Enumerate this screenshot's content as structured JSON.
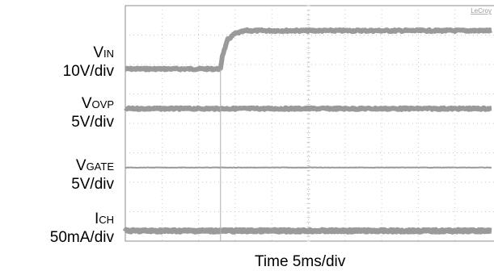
{
  "chart_data": {
    "type": "line",
    "brand": "LeCroy",
    "xlabel": "Time 5ms/div",
    "x_divisions": 10,
    "y_divisions": 8,
    "grid": true,
    "trace_color": "#9a9a9a",
    "grid_color": "#c8c8c8",
    "series": [
      {
        "name": "VIN",
        "name_main": "V",
        "name_sub": "IN",
        "scale": "10V/div",
        "x": [
          0,
          2.6,
          2.65,
          2.8,
          3.0,
          3.3,
          10
        ],
        "y": [
          5.85,
          5.85,
          6.3,
          6.85,
          7.05,
          7.15,
          7.15
        ]
      },
      {
        "name": "VOVP",
        "name_main": "V",
        "name_sub": "OVP",
        "scale": "5V/div",
        "x": [
          0,
          10
        ],
        "y": [
          4.5,
          4.5
        ]
      },
      {
        "name": "VGATE",
        "name_main": "V",
        "name_sub": "GATE",
        "scale": "5V/div",
        "x": [
          0,
          10
        ],
        "y": [
          2.5,
          2.5
        ]
      },
      {
        "name": "ICH",
        "name_main": "I",
        "name_sub": "CH",
        "scale": "50mA/div",
        "x": [
          0,
          10
        ],
        "y": [
          0.35,
          0.35
        ]
      }
    ]
  }
}
